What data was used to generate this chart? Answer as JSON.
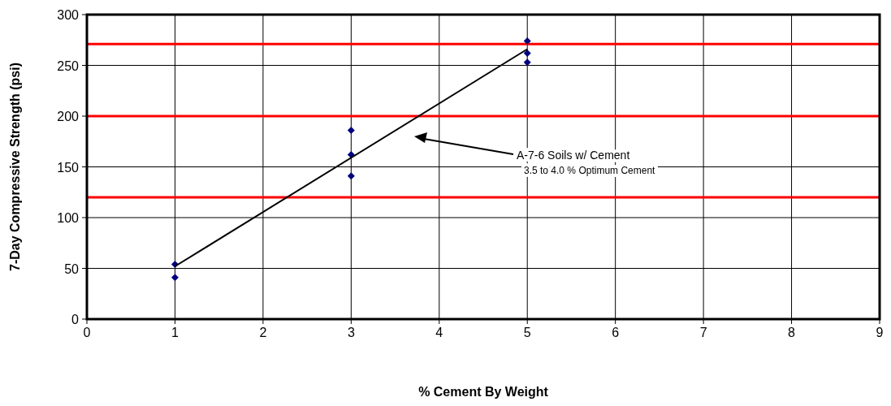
{
  "chart_data": {
    "type": "scatter",
    "xlabel": "% Cement By Weight",
    "ylabel": "7-Day Compressive Strength (psi)",
    "xlim": [
      0,
      9
    ],
    "xticks": [
      0,
      1,
      2,
      3,
      4,
      5,
      6,
      7,
      8,
      9
    ],
    "ylim": [
      0,
      300
    ],
    "yticks": [
      0,
      50,
      100,
      150,
      200,
      250,
      300
    ],
    "grid": true,
    "marker": "diamond",
    "series": [
      {
        "color": "#000080",
        "x": [
          1,
          1,
          3,
          3,
          3,
          5,
          5,
          5
        ],
        "values": [
          54,
          41,
          186,
          162,
          141,
          274,
          262,
          253
        ]
      },
      {
        "type": "line",
        "color": "#000000",
        "x": [
          1,
          5
        ],
        "values": [
          52,
          266
        ],
        "marker": "none",
        "line_style": "solid"
      }
    ],
    "ref_lines": [
      {
        "axis": "y",
        "value": 271,
        "color": "#ff0000"
      },
      {
        "axis": "y",
        "value": 200,
        "color": "#ff0000"
      },
      {
        "axis": "y",
        "value": 120,
        "color": "#ff0000"
      }
    ],
    "annotations": [
      "A-7-6 Soils w/ Cement",
      "3.5 to 4.0 % Optimum Cement"
    ]
  }
}
